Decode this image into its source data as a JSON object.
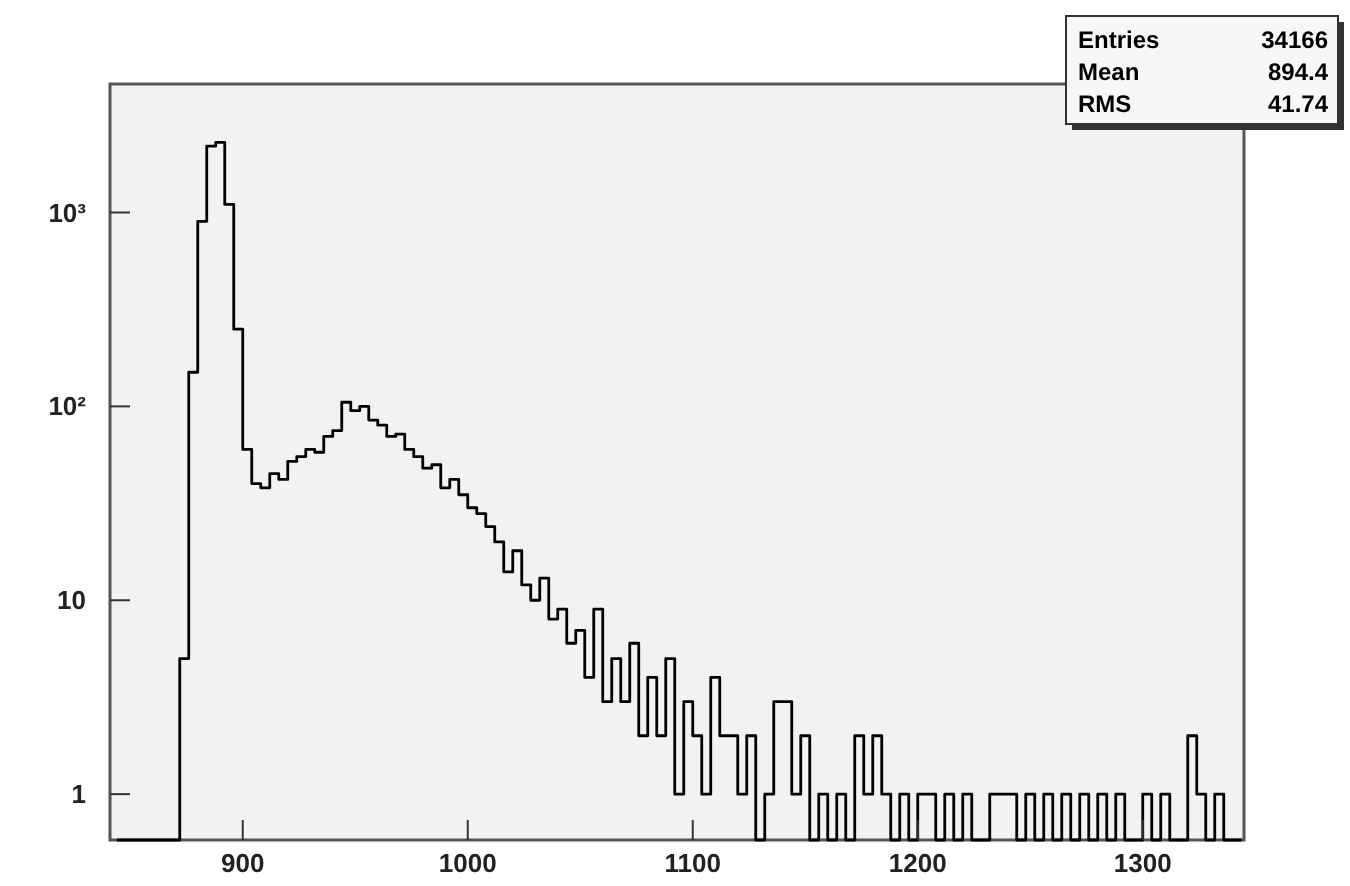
{
  "chart_data": {
    "type": "histogram",
    "log": "y",
    "grid": false,
    "color": "#000000",
    "xlim": [
      841,
      1345
    ],
    "ylim": [
      0.58,
      4600
    ],
    "xticks": [
      900,
      1000,
      1100,
      1200,
      1300
    ],
    "yticks": [
      1,
      10,
      {
        "value": 100,
        "label": "10²"
      },
      {
        "value": 1000,
        "label": "10³"
      }
    ],
    "annotations": [
      "Entries 34166",
      "Mean 894.4",
      "RMS 41.74"
    ],
    "bins": [
      844,
      848,
      852,
      856,
      860,
      864,
      868,
      872,
      876,
      880,
      884,
      888,
      892,
      896,
      900,
      904,
      908,
      912,
      916,
      920,
      924,
      928,
      932,
      936,
      940,
      944,
      948,
      952,
      956,
      960,
      964,
      968,
      972,
      976,
      980,
      984,
      988,
      992,
      996,
      1000,
      1004,
      1008,
      1012,
      1016,
      1020,
      1024,
      1028,
      1032,
      1036,
      1040,
      1044,
      1048,
      1052,
      1056,
      1060,
      1064,
      1068,
      1072,
      1076,
      1080,
      1084,
      1088,
      1092,
      1096,
      1100,
      1104,
      1108,
      1112,
      1116,
      1120,
      1124,
      1128,
      1132,
      1136,
      1140,
      1144,
      1148,
      1152,
      1156,
      1160,
      1164,
      1168,
      1172,
      1176,
      1180,
      1184,
      1188,
      1192,
      1196,
      1200,
      1204,
      1208,
      1212,
      1216,
      1220,
      1224,
      1228,
      1232,
      1236,
      1240,
      1244,
      1248,
      1252,
      1256,
      1260,
      1264,
      1268,
      1272,
      1276,
      1280,
      1284,
      1288,
      1292,
      1296,
      1300,
      1304,
      1308,
      1312,
      1316,
      1320,
      1324,
      1328,
      1332,
      1336,
      1340,
      1344
    ],
    "values": [
      null,
      null,
      null,
      null,
      null,
      null,
      null,
      5,
      150,
      900,
      2200,
      2300,
      1100,
      250,
      60,
      40,
      38,
      45,
      42,
      52,
      55,
      60,
      58,
      70,
      75,
      105,
      95,
      100,
      85,
      80,
      70,
      72,
      60,
      55,
      48,
      50,
      38,
      42,
      35,
      30,
      28,
      24,
      20,
      14,
      18,
      12,
      10,
      13,
      8,
      9,
      6,
      7,
      4,
      9,
      3,
      5,
      3,
      6,
      2,
      4,
      2,
      5,
      1,
      3,
      2,
      1,
      4,
      2,
      2,
      1,
      2,
      null,
      1,
      3,
      3,
      1,
      2,
      null,
      1,
      null,
      1,
      null,
      2,
      1,
      2,
      1,
      null,
      1,
      null,
      1,
      1,
      null,
      1,
      null,
      1,
      null,
      null,
      1,
      1,
      1,
      null,
      1,
      null,
      1,
      null,
      1,
      null,
      1,
      null,
      1,
      null,
      1,
      null,
      null,
      1,
      null,
      1,
      null,
      null,
      2,
      1,
      null,
      1,
      null,
      null
    ]
  }
}
